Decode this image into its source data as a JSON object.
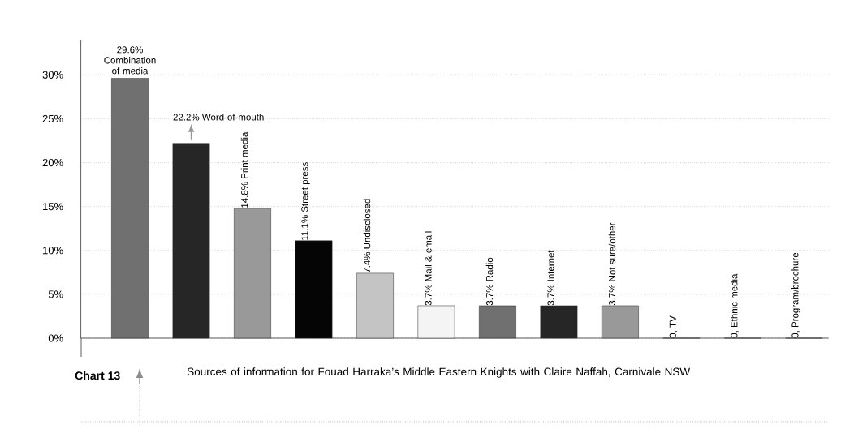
{
  "chart_data": {
    "type": "bar",
    "title": "Chart 13",
    "subtitle": "Sources of information for Fouad Harraka’s Middle Eastern Knights with Claire Naffah, Carnivale NSW",
    "categories": [
      null,
      null,
      null,
      null,
      null,
      null,
      null,
      null,
      null,
      null,
      null,
      null
    ],
    "values": [
      29.6,
      22.2,
      14.8,
      11.1,
      7.4,
      3.7,
      3.7,
      3.7,
      3.7,
      0,
      0,
      0
    ],
    "value_labels": [
      "29.6% Combination of media",
      "22.2% Word-of-mouth",
      "14.8% Print media",
      "11.1% Street press",
      "7.4% Undisclosed",
      "3.7% Mail & email",
      "3.7% Radio",
      "3.7% Internet",
      "3.7% Not sure/other",
      "0, TV",
      "0, Ethnic media",
      "0, Program/brochure"
    ],
    "colors": [
      "#707070",
      "#262626",
      "#999999",
      "#050505",
      "#c4c4c4",
      "#f4f4f4",
      "#707070",
      "#262626",
      "#999999",
      "#ffffff",
      "#ffffff",
      "#ffffff"
    ],
    "ylim": [
      0,
      34
    ],
    "yticks": [
      {
        "value": 0,
        "label": "0%"
      },
      {
        "value": 5,
        "label": "5%"
      },
      {
        "value": 10,
        "label": "10%"
      },
      {
        "value": 15,
        "label": "15%"
      },
      {
        "value": 20,
        "label": "20%"
      },
      {
        "value": 25,
        "label": "25%"
      },
      {
        "value": 30,
        "label": "30%"
      }
    ],
    "grid": "y"
  }
}
